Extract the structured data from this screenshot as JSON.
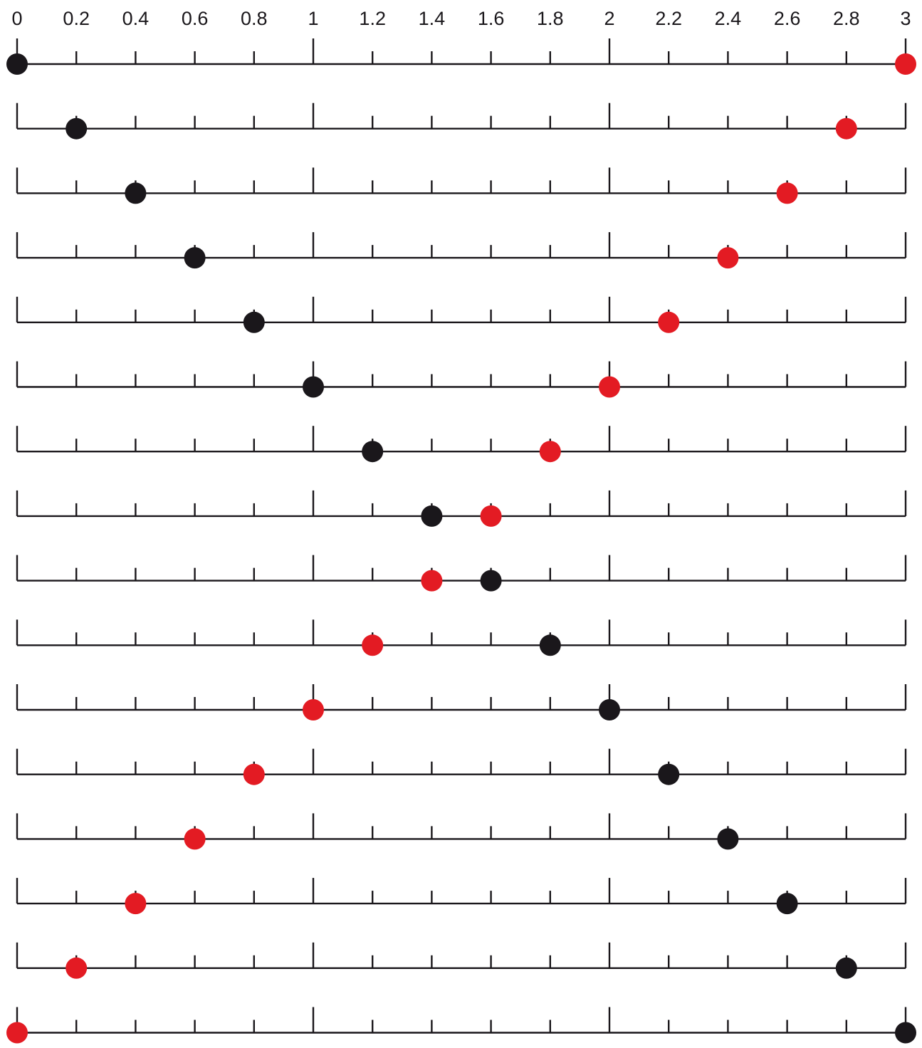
{
  "axis": {
    "min": 0,
    "max": 3,
    "tick_step": 0.2,
    "major_ticks": [
      0,
      1,
      2,
      3
    ],
    "tick_labels": [
      "0",
      "0.2",
      "0.4",
      "0.6",
      "0.8",
      "1",
      "1.2",
      "1.4",
      "1.6",
      "1.8",
      "2",
      "2.2",
      "2.4",
      "2.6",
      "2.8",
      "3"
    ]
  },
  "colors": {
    "line": "#1a171b",
    "black_dot": "#1a171b",
    "red_dot": "#e31b23",
    "background": "#ffffff"
  },
  "rows": [
    {
      "black": 0.0,
      "red": 3.0
    },
    {
      "black": 0.2,
      "red": 2.8
    },
    {
      "black": 0.4,
      "red": 2.6
    },
    {
      "black": 0.6,
      "red": 2.4
    },
    {
      "black": 0.8,
      "red": 2.2
    },
    {
      "black": 1.0,
      "red": 2.0
    },
    {
      "black": 1.2,
      "red": 1.8
    },
    {
      "black": 1.4,
      "red": 1.6
    },
    {
      "black": 1.6,
      "red": 1.4
    },
    {
      "black": 1.8,
      "red": 1.2
    },
    {
      "black": 2.0,
      "red": 1.0
    },
    {
      "black": 2.2,
      "red": 0.8
    },
    {
      "black": 2.4,
      "red": 0.6
    },
    {
      "black": 2.6,
      "red": 0.4
    },
    {
      "black": 2.8,
      "red": 0.2
    },
    {
      "black": 3.0,
      "red": 0.0
    }
  ]
}
